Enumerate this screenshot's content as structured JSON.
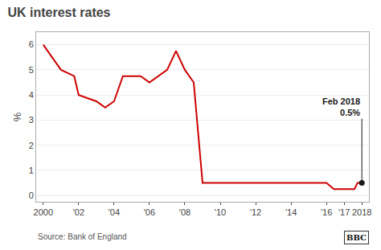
{
  "chart_data": {
    "type": "line",
    "title": "UK interest rates",
    "y_label": "%",
    "x": [
      2000.0,
      2001.0,
      2001.75,
      2002.0,
      2003.0,
      2003.5,
      2004.0,
      2004.5,
      2005.0,
      2005.5,
      2006.0,
      2006.5,
      2007.0,
      2007.5,
      2008.0,
      2008.5,
      2009.0,
      2009.5,
      2010.0,
      2011.0,
      2012.0,
      2013.0,
      2014.0,
      2015.0,
      2016.0,
      2016.42,
      2016.67,
      2017.0,
      2017.58,
      2017.75,
      2018.0
    ],
    "values": [
      6.0,
      5.0,
      4.75,
      4.0,
      3.75,
      3.5,
      3.75,
      4.75,
      4.75,
      4.75,
      4.5,
      4.75,
      5.0,
      5.75,
      5.0,
      4.5,
      0.5,
      0.5,
      0.5,
      0.5,
      0.5,
      0.5,
      0.5,
      0.5,
      0.5,
      0.25,
      0.25,
      0.25,
      0.25,
      0.5,
      0.5
    ],
    "color": "#cc0000",
    "xlim": [
      1999.6,
      2018.4
    ],
    "ylim": [
      -0.25,
      6.5
    ],
    "xticks": [
      2000,
      {
        "value": 2002,
        "label": "'02"
      },
      {
        "value": 2004,
        "label": "'04"
      },
      {
        "value": 2006,
        "label": "'06"
      },
      {
        "value": 2008,
        "label": "'08"
      },
      {
        "value": 2010,
        "label": "'10"
      },
      {
        "value": 2012,
        "label": "'12"
      },
      {
        "value": 2014,
        "label": "'14"
      },
      {
        "value": 2016,
        "label": "'16"
      },
      {
        "value": 2017,
        "label": "'17"
      },
      2018
    ],
    "yticks": [
      0,
      1,
      2,
      3,
      4,
      5,
      6
    ],
    "grid": "y",
    "annotations": [
      {
        "text": "Feb 2018\n0.5%",
        "x": 2018.0,
        "y": 0.5,
        "color": "#1a1a1a"
      }
    ],
    "source": "Source: Bank of England",
    "credit": "BBC"
  }
}
